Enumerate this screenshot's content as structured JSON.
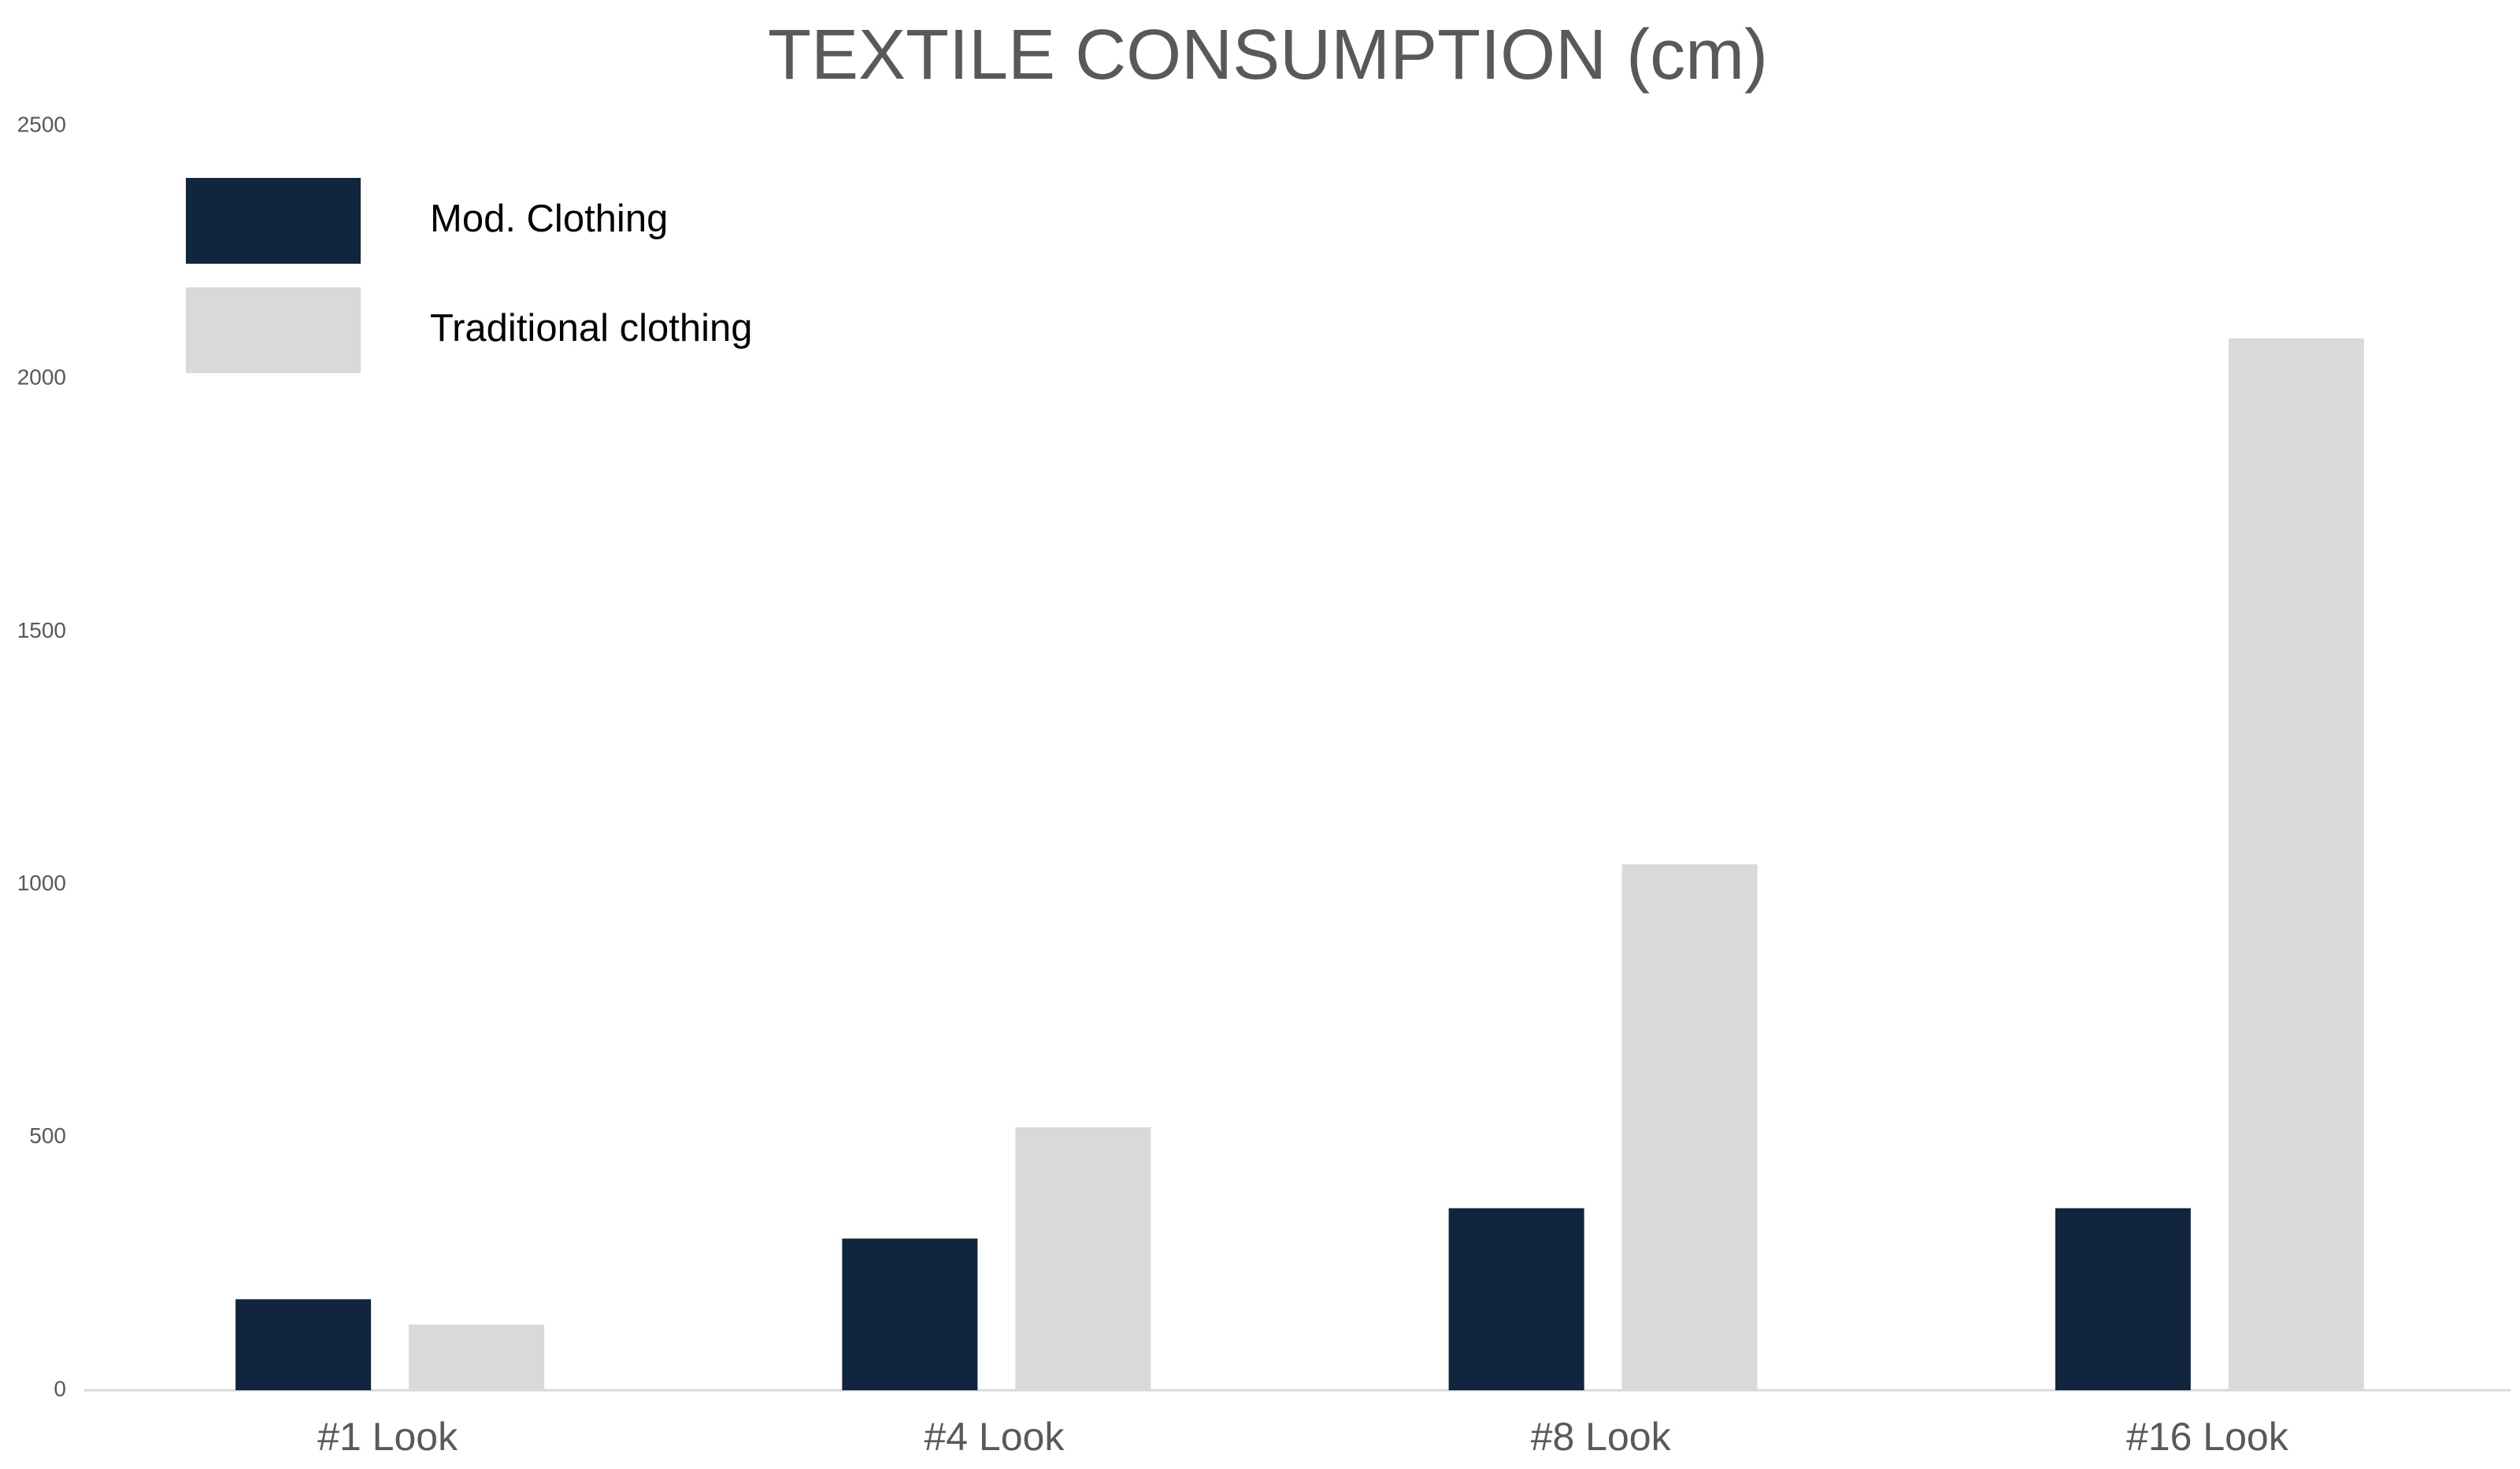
{
  "chart_data": {
    "type": "bar",
    "title": "TEXTILE CONSUMPTION (cm)",
    "categories": [
      "#1 Look",
      "#4 Look",
      "#8 Look",
      "#16 Look"
    ],
    "series": [
      {
        "name": "Mod. Clothing",
        "color": "#12253f",
        "values": [
          180,
          300,
          360,
          360
        ]
      },
      {
        "name": "Traditional clothing",
        "color": "#d9d9d9",
        "values": [
          130,
          520,
          1040,
          2080
        ]
      }
    ],
    "ylim": [
      0,
      2500
    ],
    "yticks": [
      0,
      500,
      1000,
      1500,
      2000,
      2500
    ],
    "grid": false,
    "legend": "upper left"
  }
}
